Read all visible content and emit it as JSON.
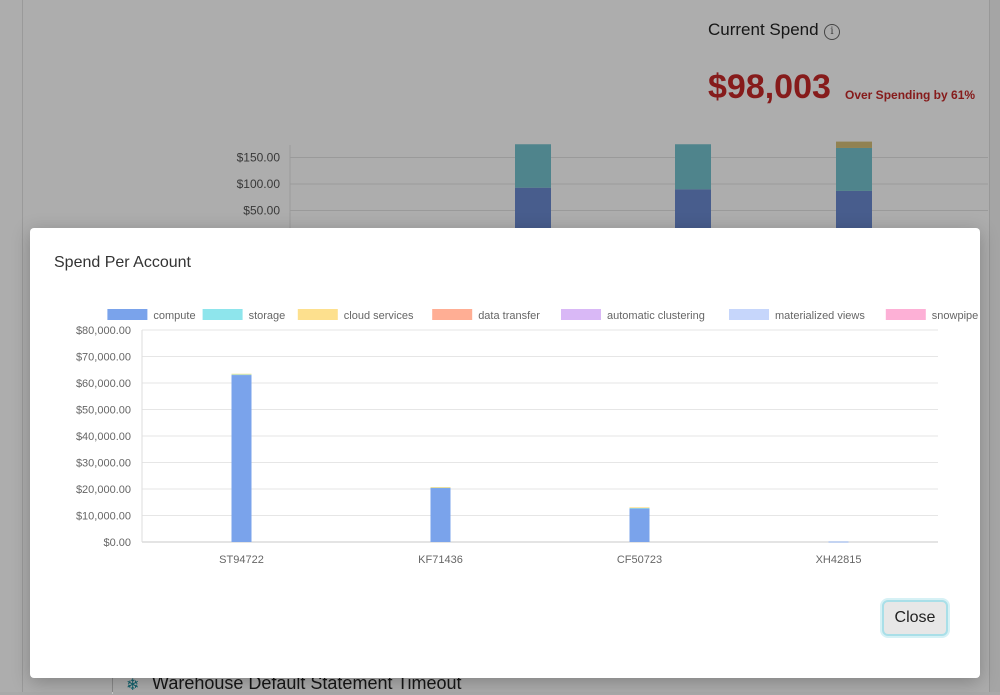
{
  "background": {
    "current_spend_title": "Current Spend",
    "info_icon": "info-icon",
    "current_spend_amount": "$98,003",
    "over_spending_text": "Over Spending by 61%",
    "bg_chart": {
      "y_ticks": [
        "$150.00",
        "$100.00",
        "$50.00"
      ],
      "y_values": [
        150,
        100,
        50
      ],
      "bars": [
        {
          "compute": 93,
          "storage": 82,
          "cloud_services": 0
        },
        {
          "compute": 90,
          "storage": 85,
          "cloud_services": 0
        },
        {
          "compute": 87,
          "storage": 81,
          "cloud_services": 12
        }
      ],
      "colors": {
        "compute": "#6a8ad0",
        "storage": "#75c3ce",
        "cloud_services": "#d6c07a"
      }
    },
    "warehouse_label": "Warehouse Default Statement Timeout",
    "warehouse_icon": "snowflake-icon"
  },
  "modal": {
    "title": "Spend Per Account",
    "close_label": "Close"
  },
  "chart_data": {
    "type": "bar",
    "stacked": true,
    "categories": [
      "ST94722",
      "KF71436",
      "CF50723",
      "XH42815"
    ],
    "series": [
      {
        "name": "compute",
        "color": "#7aa3eb",
        "values": [
          63000,
          20500,
          12800,
          150
        ]
      },
      {
        "name": "storage",
        "color": "#8ee5ec",
        "values": [
          300,
          150,
          100,
          0
        ]
      },
      {
        "name": "cloud services",
        "color": "#fde08e",
        "values": [
          200,
          100,
          200,
          0
        ]
      },
      {
        "name": "data transfer",
        "color": "#ffae94",
        "values": [
          0,
          0,
          0,
          0
        ]
      },
      {
        "name": "automatic clustering",
        "color": "#d9b8f6",
        "values": [
          0,
          0,
          0,
          0
        ]
      },
      {
        "name": "materialized views",
        "color": "#c6d6fb",
        "values": [
          0,
          0,
          0,
          0
        ]
      },
      {
        "name": "snowpipe",
        "color": "#fdb0d6",
        "values": [
          0,
          0,
          0,
          0
        ]
      }
    ],
    "y_ticks": [
      "$0.00",
      "$10,000.00",
      "$20,000.00",
      "$30,000.00",
      "$40,000.00",
      "$50,000.00",
      "$60,000.00",
      "$70,000.00",
      "$80,000.00"
    ],
    "ylim": [
      0,
      80000
    ],
    "grid": true,
    "legend": "top"
  }
}
